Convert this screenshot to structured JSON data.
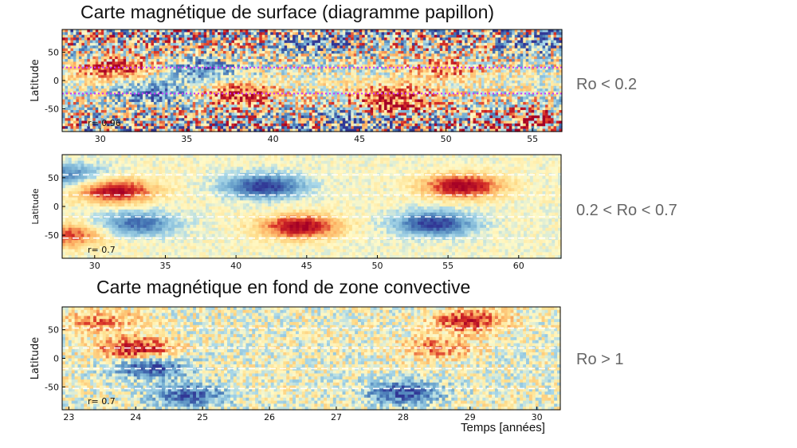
{
  "chart_data": [
    {
      "type": "heatmap",
      "title": "Carte magnétique de surface (diagramme papillon)",
      "ylabel": "Latitude",
      "xlim": [
        27.8,
        56.7
      ],
      "ylim": [
        -90,
        90
      ],
      "xticks": [
        30,
        35,
        40,
        45,
        50,
        55
      ],
      "yticks": [
        50,
        0,
        -50
      ],
      "annotation": "r= 0.96",
      "regime": "Ro < 0.2",
      "guide_lines_lat": [
        23,
        -23
      ],
      "guide_line_style": "dotted-magenta",
      "colormap": "RdYlBu_r",
      "field_blobs": [
        {
          "t": 31,
          "lat": 20,
          "v": 0.7
        },
        {
          "t": 36,
          "lat": 18,
          "v": -0.6
        },
        {
          "t": 33,
          "lat": -20,
          "v": -0.6
        },
        {
          "t": 38,
          "lat": -22,
          "v": 0.7
        },
        {
          "t": 42,
          "lat": 70,
          "v": -0.6
        },
        {
          "t": 45,
          "lat": -65,
          "v": -0.9
        },
        {
          "t": 46,
          "lat": -50,
          "v": 0.8
        },
        {
          "t": 47,
          "lat": -25,
          "v": 0.6
        },
        {
          "t": 50,
          "lat": 20,
          "v": 0.5
        },
        {
          "t": 55,
          "lat": 70,
          "v": -0.5
        },
        {
          "t": 55,
          "lat": -70,
          "v": 0.6
        }
      ]
    },
    {
      "type": "heatmap",
      "ylabel": "Latitude",
      "xlim": [
        27.7,
        63
      ],
      "ylim": [
        -90,
        90
      ],
      "xticks": [
        30,
        35,
        40,
        45,
        50,
        55,
        60
      ],
      "yticks": [
        50,
        0,
        -50
      ],
      "annotation": "r= 0.7",
      "regime": "0.2 < Ro < 0.7",
      "guide_lines_lat": [
        55,
        20,
        -18,
        -55
      ],
      "guide_line_style": "dashed-white",
      "colormap": "RdYlBu_r",
      "field_blobs": [
        {
          "t": 31.5,
          "lat": 27,
          "v": 0.95
        },
        {
          "t": 33,
          "lat": -30,
          "v": -0.75
        },
        {
          "t": 42,
          "lat": 35,
          "v": -1.0
        },
        {
          "t": 44.5,
          "lat": -35,
          "v": 1.0
        },
        {
          "t": 54,
          "lat": -30,
          "v": -1.0
        },
        {
          "t": 56,
          "lat": 35,
          "v": 1.0
        },
        {
          "t": 28,
          "lat": -50,
          "v": 0.7
        },
        {
          "t": 28,
          "lat": 55,
          "v": -0.6
        }
      ]
    },
    {
      "type": "heatmap",
      "title": "Carte magnétique en fond de zone convective",
      "ylabel": "Latitude",
      "xlabel": "Temps [années]",
      "xlim": [
        22.9,
        30.35
      ],
      "ylim": [
        -90,
        90
      ],
      "xticks": [
        23,
        24,
        25,
        26,
        27,
        28,
        29,
        30
      ],
      "yticks": [
        50,
        0,
        -50
      ],
      "annotation": "r= 0.7",
      "regime": "Ro > 1",
      "guide_lines_lat": [
        53,
        18,
        -18,
        -53
      ],
      "guide_line_style": "dashed-white",
      "colormap": "RdYlBu_r",
      "field_blobs": [
        {
          "t": 24.0,
          "lat": 15,
          "v": 0.95
        },
        {
          "t": 24.2,
          "lat": -15,
          "v": -0.9
        },
        {
          "t": 24.8,
          "lat": -65,
          "v": -0.8
        },
        {
          "t": 28.0,
          "lat": -60,
          "v": -0.9
        },
        {
          "t": 29.0,
          "lat": 65,
          "v": 0.8
        },
        {
          "t": 23.5,
          "lat": 65,
          "v": 0.5
        },
        {
          "t": 28.5,
          "lat": 18,
          "v": 0.5
        }
      ]
    }
  ]
}
